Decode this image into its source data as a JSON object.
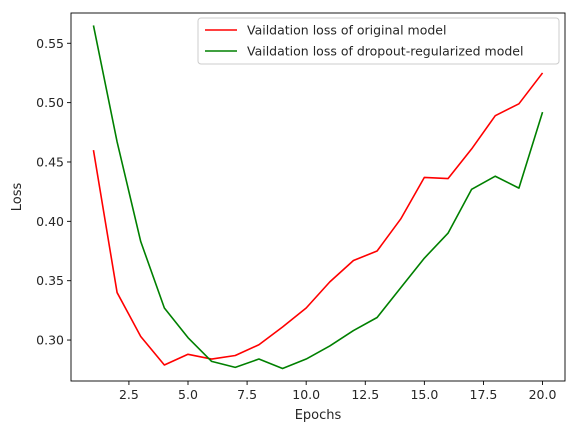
{
  "chart_data": {
    "type": "line",
    "title": "",
    "xlabel": "Epochs",
    "ylabel": "Loss",
    "x": [
      1,
      2,
      3,
      4,
      5,
      6,
      7,
      8,
      9,
      10,
      11,
      12,
      13,
      14,
      15,
      16,
      17,
      18,
      19,
      20
    ],
    "xlim": [
      0.05,
      20.95
    ],
    "ylim": [
      0.2655,
      0.5755
    ],
    "xticks": [
      2.5,
      5.0,
      7.5,
      10.0,
      12.5,
      15.0,
      17.5,
      20.0
    ],
    "xtick_labels": [
      "2.5",
      "5.0",
      "7.5",
      "10.0",
      "12.5",
      "15.0",
      "17.5",
      "20.0"
    ],
    "yticks": [
      0.3,
      0.35,
      0.4,
      0.45,
      0.5,
      0.55
    ],
    "ytick_labels": [
      "0.30",
      "0.35",
      "0.40",
      "0.45",
      "0.50",
      "0.55"
    ],
    "grid": false,
    "legend_position": "top-right",
    "series": [
      {
        "name": "Vaildation loss of original model",
        "color": "#ff0000",
        "values": [
          0.46,
          0.34,
          0.303,
          0.279,
          0.288,
          0.284,
          0.287,
          0.296,
          0.311,
          0.327,
          0.349,
          0.367,
          0.375,
          0.402,
          0.437,
          0.436,
          0.461,
          0.489,
          0.499,
          0.525
        ]
      },
      {
        "name": "Vaildation loss of dropout-regularized model",
        "color": "#008000",
        "values": [
          0.565,
          0.467,
          0.383,
          0.327,
          0.302,
          0.282,
          0.277,
          0.284,
          0.276,
          0.284,
          0.295,
          0.308,
          0.319,
          0.344,
          0.369,
          0.39,
          0.427,
          0.438,
          0.428,
          0.492
        ]
      }
    ]
  }
}
